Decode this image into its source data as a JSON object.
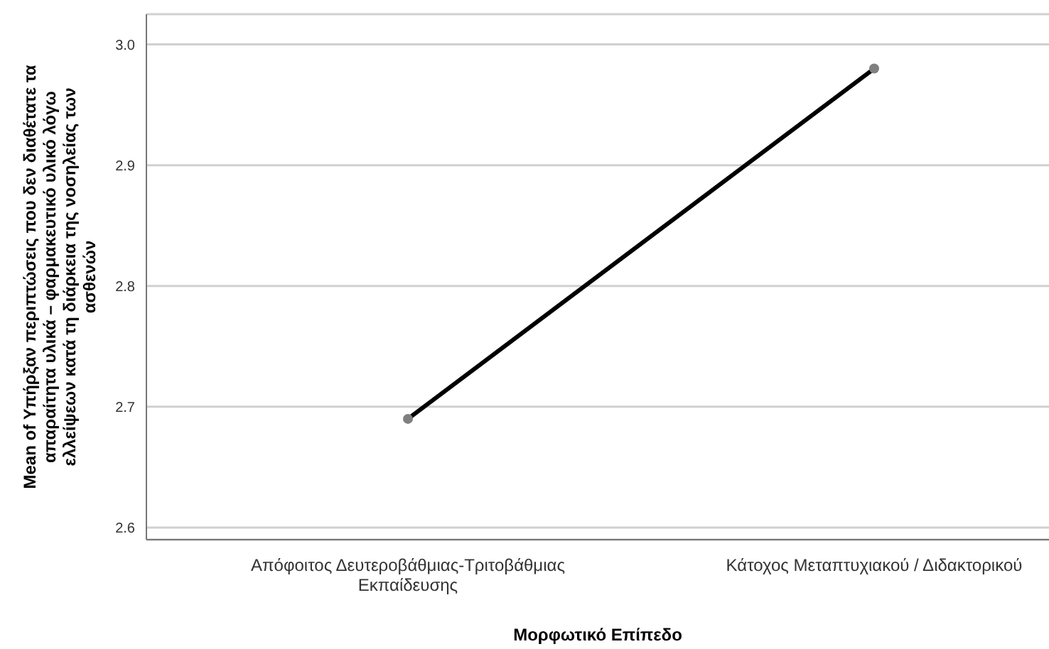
{
  "chart_data": {
    "type": "line",
    "xlabel": "Μορφωτικό Επίπεδο",
    "ylabel": "Mean of Υπήρξαν περιπτώσεις που δεν διαθέτατε τα απαραίτητα υλικά – φαρμακευτικό υλικό λόγω ελλείψεων κατά τη διάρκεια της νοσηλείας των ασθενών",
    "categories": [
      "Απόφοιτος Δευτεροβάθμιας-Τριτοβάθμιας Εκπαίδευσης",
      "Κάτοχος Μεταπτυχιακού / Διδακτορικού"
    ],
    "series": [
      {
        "color": "#000000",
        "values": [
          2.69,
          2.98
        ]
      }
    ],
    "ylim": [
      2.59,
      3.025
    ],
    "yticks": [
      2.6,
      2.7,
      2.8,
      2.9,
      {
        "value": 3.0,
        "label": "3.0"
      }
    ],
    "grid": "y",
    "marker": "circle",
    "line_style": "solid"
  }
}
